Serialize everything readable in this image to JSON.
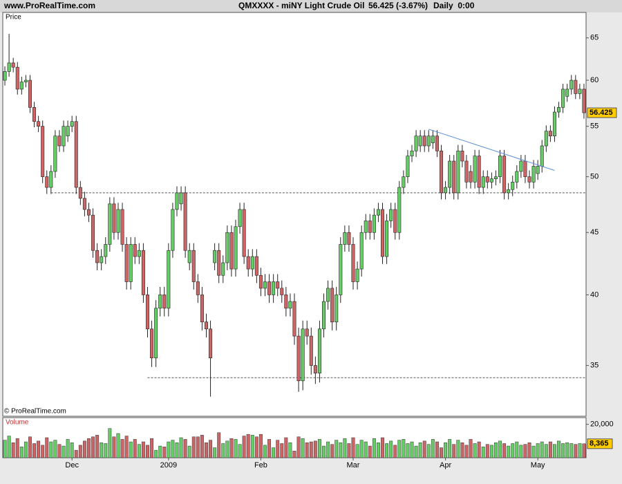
{
  "header": {
    "site": "www.ProRealTime.com",
    "instrument": "QMXXXX - miNY Light Crude Oil",
    "quote": "56.425 (-3.67%)",
    "period": "Daily  0:00"
  },
  "chart_data": {
    "type": "candlestick",
    "y_label": "Price",
    "copyright": "© ProRealTime.com",
    "categories": [
      null,
      null,
      null,
      null,
      null,
      null,
      null,
      null,
      null,
      null,
      null,
      null,
      null,
      null,
      null,
      null,
      "Dec",
      null,
      null,
      null,
      null,
      null,
      null,
      null,
      null,
      null,
      null,
      null,
      null,
      null,
      null,
      null,
      null,
      null,
      null,
      null,
      null,
      null,
      null,
      "2009",
      null,
      null,
      null,
      null,
      null,
      null,
      null,
      null,
      null,
      null,
      null,
      null,
      null,
      null,
      null,
      null,
      null,
      null,
      null,
      null,
      null,
      "Feb",
      null,
      null,
      null,
      null,
      null,
      null,
      null,
      null,
      null,
      null,
      null,
      null,
      null,
      null,
      null,
      null,
      null,
      null,
      null,
      null,
      null,
      "Mar",
      null,
      null,
      null,
      null,
      null,
      null,
      null,
      null,
      null,
      null,
      null,
      null,
      null,
      null,
      null,
      null,
      null,
      null,
      null,
      null,
      null,
      "Apr",
      null,
      null,
      null,
      null,
      null,
      null,
      null,
      null,
      null,
      null,
      null,
      null,
      null,
      null,
      null,
      null,
      null,
      null,
      null,
      null,
      null,
      "May",
      null,
      null,
      null,
      null,
      null,
      null,
      null,
      null,
      null,
      null,
      null
    ],
    "open": [
      60.0,
      61.0,
      62.0,
      61.5,
      59.0,
      59.8,
      60.0,
      57.0,
      55.5,
      55.0,
      50.0,
      49.0,
      50.5,
      54.0,
      53.0,
      54.0,
      55.0,
      55.5,
      49.0,
      48.0,
      47.0,
      46.5,
      43.5,
      42.5,
      43.0,
      44.0,
      47.5,
      45.0,
      47.0,
      44.0,
      41.0,
      44.0,
      43.0,
      43.5,
      40.0,
      37.5,
      35.5,
      39.0,
      40.0,
      39.0,
      43.5,
      47.0,
      47.5,
      48.5,
      42.5,
      43.5,
      41.0,
      40.0,
      38.0,
      37.5,
      42.5,
      43.5,
      41.5,
      42.5,
      45.0,
      42.0,
      45.5,
      47.0,
      43.0,
      42.0,
      43.0,
      41.5,
      40.5,
      41.0,
      40.0,
      41.0,
      40.5,
      40.0,
      39.0,
      39.5,
      37.0,
      34.0,
      37.5,
      37.0,
      35.0,
      34.5,
      37.5,
      39.5,
      40.5,
      38.0,
      40.0,
      44.0,
      45.0,
      44.0,
      41.0,
      42.0,
      45.0,
      46.0,
      45.0,
      46.5,
      47.0,
      43.0,
      46.0,
      47.0,
      45.0,
      49.0,
      50.0,
      52.0,
      52.5,
      53.0,
      54.0,
      53.0,
      53.3,
      54.0,
      52.5,
      48.5,
      49.0,
      51.5,
      48.5,
      52.5,
      51.5,
      50.5,
      49.5,
      52.0,
      49.0,
      50.0,
      49.5,
      49.8,
      50.0,
      52.0,
      48.5,
      48.8,
      49.5,
      50.5,
      51.5,
      50.0,
      49.5,
      50.3,
      51.0,
      53.0,
      54.5,
      54.0,
      56.5,
      57.0,
      58.2,
      59.0,
      60.0,
      58.5,
      59.0
    ],
    "high": [
      61.6,
      65.5,
      62.6,
      62.1,
      60.4,
      60.6,
      60.6,
      57.6,
      56.1,
      55.6,
      50.6,
      51.1,
      54.6,
      54.6,
      55.6,
      55.6,
      56.1,
      56.1,
      49.6,
      48.6,
      47.6,
      47.1,
      44.1,
      43.6,
      44.6,
      48.1,
      48.1,
      47.6,
      47.6,
      44.6,
      44.6,
      44.6,
      44.1,
      44.1,
      40.6,
      38.1,
      39.6,
      40.6,
      40.6,
      44.1,
      47.6,
      49.1,
      49.1,
      49.1,
      44.1,
      44.1,
      41.6,
      40.6,
      38.6,
      38.1,
      44.1,
      44.1,
      43.1,
      45.6,
      45.6,
      46.1,
      47.6,
      47.6,
      43.6,
      43.6,
      43.6,
      42.1,
      41.6,
      41.6,
      41.6,
      41.6,
      41.1,
      40.6,
      40.1,
      40.1,
      37.6,
      38.1,
      38.1,
      37.6,
      35.6,
      38.1,
      40.1,
      41.1,
      41.1,
      40.6,
      44.6,
      45.6,
      45.6,
      44.6,
      42.6,
      45.6,
      46.6,
      46.6,
      47.1,
      47.6,
      47.6,
      46.6,
      47.6,
      47.6,
      49.6,
      50.6,
      52.6,
      53.1,
      54.6,
      54.6,
      54.6,
      54.6,
      54.6,
      54.6,
      53.1,
      49.6,
      52.1,
      52.1,
      53.1,
      53.1,
      52.1,
      51.1,
      52.6,
      52.6,
      50.6,
      50.6,
      50.4,
      50.6,
      52.6,
      52.6,
      49.4,
      50.1,
      51.1,
      52.1,
      52.1,
      50.6,
      51.6,
      51.6,
      53.6,
      55.1,
      55.1,
      57.1,
      57.6,
      59.6,
      59.6,
      60.6,
      60.6,
      59.6,
      59.6
    ],
    "low": [
      59.4,
      60.4,
      60.9,
      58.4,
      58.4,
      59.2,
      56.4,
      54.9,
      54.4,
      49.4,
      48.4,
      48.4,
      49.9,
      52.4,
      52.4,
      53.4,
      54.4,
      48.4,
      47.4,
      46.4,
      45.9,
      42.9,
      41.9,
      41.9,
      42.4,
      43.4,
      44.4,
      44.4,
      43.4,
      40.4,
      40.4,
      42.4,
      42.4,
      39.4,
      36.9,
      34.9,
      34.9,
      38.4,
      38.4,
      38.4,
      42.9,
      46.4,
      46.9,
      42.9,
      41.9,
      40.4,
      39.4,
      37.4,
      36.9,
      33.0,
      41.9,
      40.9,
      40.9,
      41.9,
      41.4,
      41.4,
      44.9,
      42.4,
      41.4,
      41.4,
      40.9,
      39.9,
      39.9,
      39.4,
      39.4,
      39.9,
      39.4,
      38.4,
      38.4,
      36.4,
      33.3,
      33.4,
      36.4,
      34.4,
      33.8,
      33.9,
      36.9,
      38.9,
      37.4,
      37.4,
      39.4,
      43.4,
      43.4,
      40.4,
      40.4,
      41.4,
      44.4,
      44.4,
      44.4,
      45.9,
      42.4,
      42.4,
      45.4,
      44.4,
      44.4,
      48.4,
      49.4,
      51.4,
      51.9,
      52.4,
      52.4,
      52.4,
      52.7,
      51.9,
      47.9,
      47.9,
      48.4,
      47.9,
      47.9,
      50.9,
      48.9,
      48.9,
      48.9,
      48.4,
      48.4,
      48.9,
      48.9,
      49.2,
      49.4,
      47.9,
      47.9,
      48.2,
      48.9,
      49.9,
      49.4,
      48.9,
      48.9,
      49.7,
      50.4,
      52.4,
      53.4,
      53.4,
      55.9,
      56.4,
      57.6,
      58.4,
      57.9,
      57.9,
      55.8
    ],
    "close": [
      61.0,
      62.0,
      61.5,
      59.0,
      59.8,
      60.0,
      57.0,
      55.5,
      55.0,
      50.0,
      49.0,
      50.5,
      54.0,
      53.0,
      55.0,
      55.0,
      55.5,
      49.0,
      48.0,
      47.0,
      46.5,
      43.5,
      42.5,
      43.0,
      44.0,
      47.5,
      45.0,
      47.0,
      44.0,
      41.0,
      44.0,
      43.0,
      43.5,
      40.0,
      37.5,
      35.5,
      39.0,
      40.0,
      39.0,
      43.5,
      47.0,
      48.5,
      48.5,
      43.5,
      43.5,
      41.0,
      40.0,
      38.0,
      37.5,
      35.5,
      43.5,
      41.5,
      42.5,
      45.0,
      42.0,
      45.5,
      47.0,
      43.0,
      42.0,
      43.0,
      41.5,
      40.5,
      41.0,
      40.0,
      41.0,
      40.5,
      40.0,
      39.0,
      39.5,
      37.0,
      34.0,
      37.5,
      37.0,
      35.0,
      34.5,
      37.5,
      39.5,
      40.5,
      38.0,
      40.0,
      44.0,
      45.0,
      44.0,
      41.0,
      42.0,
      45.0,
      46.0,
      45.0,
      46.5,
      47.0,
      43.0,
      46.0,
      47.0,
      45.0,
      49.0,
      50.0,
      52.0,
      52.5,
      54.0,
      54.0,
      53.0,
      54.0,
      54.0,
      52.5,
      48.5,
      49.0,
      51.5,
      48.5,
      52.5,
      51.5,
      49.5,
      49.5,
      52.0,
      49.0,
      50.0,
      49.5,
      49.8,
      50.0,
      52.0,
      48.5,
      48.8,
      49.5,
      50.5,
      51.5,
      50.0,
      49.5,
      51.0,
      51.0,
      53.0,
      54.5,
      54.0,
      56.5,
      57.0,
      59.0,
      59.0,
      60.0,
      58.5,
      59.0,
      56.425
    ],
    "up_color": "#66cc66",
    "down_color": "#cc6666",
    "ylim": [
      31.8,
      68.2
    ],
    "yticks": [
      35,
      40,
      45,
      50,
      55,
      60,
      65
    ],
    "log_scale": true,
    "horizontal_lines": [
      {
        "y": 48.5,
        "x_start": 11
      },
      {
        "y": 34.2,
        "x_start": 34
      }
    ],
    "trend_lines": [
      {
        "x": [
          101,
          131
        ],
        "y": [
          54.7,
          50.6
        ],
        "color": "#5b8fd8"
      }
    ],
    "volume_panel": {
      "label": "Volume",
      "values": [
        10500,
        13000,
        9000,
        11500,
        6500,
        9500,
        12500,
        8500,
        10000,
        7500,
        12000,
        9500,
        10500,
        8000,
        7000,
        11000,
        9000,
        4500,
        7500,
        10000,
        11500,
        12500,
        13500,
        9000,
        8500,
        17500,
        12500,
        14500,
        11000,
        13000,
        9500,
        11000,
        8000,
        9500,
        7500,
        11500,
        4500,
        7000,
        6500,
        9500,
        10500,
        9000,
        12000,
        11000,
        7000,
        12500,
        12500,
        13500,
        9000,
        10500,
        6000,
        15000,
        8500,
        10000,
        11500,
        11000,
        8000,
        13000,
        14000,
        13500,
        12500,
        14000,
        7500,
        11000,
        6000,
        10500,
        8500,
        12000,
        9000,
        4000,
        12500,
        11500,
        9000,
        9500,
        10000,
        11000,
        7000,
        9500,
        8000,
        10500,
        9000,
        11500,
        8500,
        12000,
        8000,
        10500,
        9500,
        7000,
        11500,
        9000,
        12000,
        8500,
        10000,
        7500,
        10500,
        11000,
        8500,
        9500,
        7000,
        9000,
        10000,
        8000,
        11000,
        9500,
        6000,
        9000,
        11000,
        8000,
        10500,
        9000,
        7500,
        11000,
        8500,
        9500,
        6500,
        8000,
        7500,
        9000,
        10000,
        8500,
        7000,
        8500,
        9500,
        7500,
        8000,
        9000,
        7000,
        8500,
        9500,
        8000,
        9500,
        8000,
        10000,
        8500,
        9000,
        8500,
        8000,
        8500,
        8365
      ],
      "ylim": [
        0,
        24000
      ],
      "yticks": [
        {
          "value": 20000,
          "label": "20,000"
        }
      ],
      "last_label": "8,365"
    }
  }
}
